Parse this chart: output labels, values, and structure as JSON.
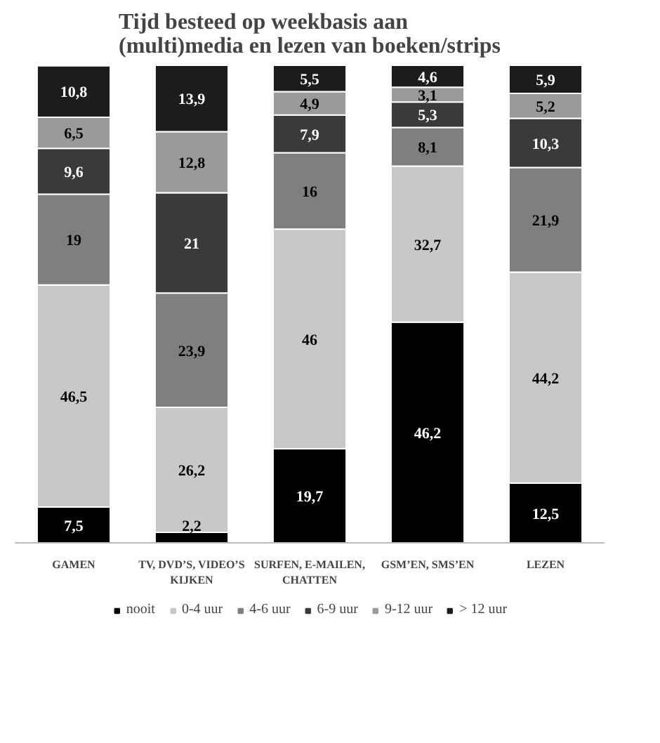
{
  "chart_data": {
    "type": "bar",
    "stacked": true,
    "title": "Tijd besteed op weekbasis aan (multi)media en lezen van boeken/strips",
    "categories": [
      "GAMEN",
      "TV, DVD’S, VIDEO’S KIJKEN",
      "SURFEN, E-MAILEN, CHATTEN",
      "GSM’EN, SMS’EN",
      "LEZEN"
    ],
    "series": [
      {
        "name": "nooit",
        "color": "#000000",
        "values": [
          7.5,
          2.2,
          19.7,
          46.2,
          12.5
        ],
        "value_labels": [
          "7,5",
          "2,2",
          "19,7",
          "46,2",
          "12,5"
        ]
      },
      {
        "name": "0-4 uur",
        "color": "#c8c8c8",
        "values": [
          46.5,
          26.2,
          46,
          32.7,
          44.2
        ],
        "value_labels": [
          "46,5",
          "26,2",
          "46",
          "32,7",
          "44,2"
        ]
      },
      {
        "name": "4-6 uur",
        "color": "#7f7f7f",
        "values": [
          19,
          23.9,
          16,
          8.1,
          21.9
        ],
        "value_labels": [
          "19",
          "23,9",
          "16",
          "8,1",
          "21,9"
        ]
      },
      {
        "name": "6-9 uur",
        "color": "#3a3a3a",
        "values": [
          9.6,
          21,
          7.9,
          5.3,
          10.3
        ],
        "value_labels": [
          "9,6",
          "21",
          "7,9",
          "5,3",
          "10,3"
        ]
      },
      {
        "name": "9-12 uur",
        "color": "#9a9a9a",
        "values": [
          6.5,
          12.8,
          4.9,
          3.1,
          5.2
        ],
        "value_labels": [
          "6,5",
          "12,8",
          "4,9",
          "3,1",
          "5,2"
        ]
      },
      {
        "name": "> 12 uur",
        "color": "#1c1c1c",
        "values": [
          10.8,
          13.9,
          5.5,
          4.6,
          5.9
        ],
        "value_labels": [
          "10,8",
          "13,9",
          "5,5",
          "4,6",
          "5,9"
        ]
      }
    ],
    "ylim": [
      0,
      100
    ],
    "tick_labels": "x",
    "grid": false,
    "legend": "bottom"
  }
}
